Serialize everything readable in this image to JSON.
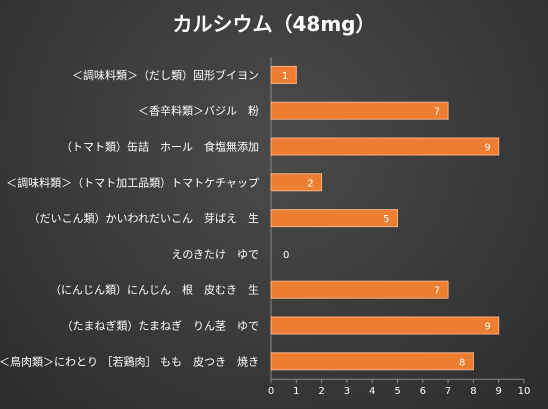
{
  "chart_data": {
    "type": "bar",
    "orientation": "horizontal",
    "title": "カルシウム（48mg）",
    "categories": [
      "＜調味料類＞（だし類）固形ブイヨン",
      "＜香辛料類＞バジル　粉",
      "（トマト類）缶詰　ホール　食塩無添加",
      "＜調味料類＞（トマト加工品類）トマトケチャップ",
      "（だいこん類）かいわれだいこん　芽ばえ　生",
      "えのきたけ　ゆで",
      "（にんじん類）にんじん　根　皮むき　生",
      "（たまねぎ類）たまねぎ　りん茎　ゆで",
      "＜鳥肉類＞にわとり ［若鶏肉］ もも　皮つき　焼き"
    ],
    "values": [
      1,
      7,
      9,
      2,
      5,
      0,
      7,
      9,
      8
    ],
    "xlim": [
      0,
      10
    ],
    "xticks": [
      0,
      1,
      2,
      3,
      4,
      5,
      6,
      7,
      8,
      9,
      10
    ],
    "grid": false,
    "colors": {
      "bar": "#ED7D31",
      "bar_border": "#F4B183",
      "axis": "#888888"
    }
  }
}
